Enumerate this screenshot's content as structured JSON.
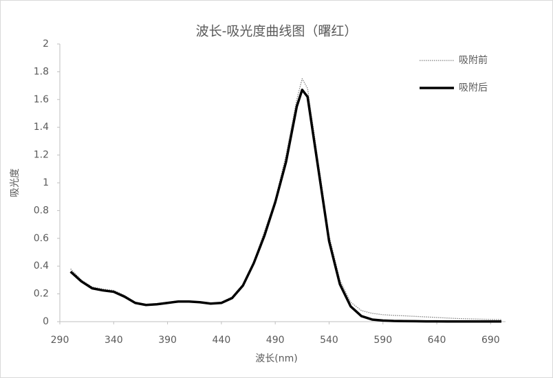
{
  "chart_data": {
    "type": "line",
    "title": "波长-吸光度曲线图（曙红）",
    "x_label": "波长(nm)",
    "y_label": "吸光度",
    "x": [
      300,
      310,
      320,
      330,
      340,
      350,
      360,
      370,
      380,
      390,
      400,
      410,
      420,
      430,
      440,
      450,
      460,
      470,
      480,
      490,
      500,
      510,
      515,
      520,
      530,
      540,
      550,
      560,
      570,
      580,
      590,
      600,
      610,
      620,
      630,
      640,
      650,
      660,
      670,
      680,
      690,
      700
    ],
    "series": [
      {
        "name": "吸附前",
        "color": "#7f7f7f",
        "line_style": "dotted",
        "line_width": 1.3,
        "values": [
          0.38,
          0.3,
          0.25,
          0.235,
          0.225,
          0.19,
          0.14,
          0.125,
          0.13,
          0.14,
          0.15,
          0.15,
          0.14,
          0.13,
          0.14,
          0.18,
          0.27,
          0.43,
          0.65,
          0.88,
          1.2,
          1.6,
          1.75,
          1.68,
          1.15,
          0.62,
          0.3,
          0.14,
          0.08,
          0.06,
          0.05,
          0.045,
          0.042,
          0.038,
          0.034,
          0.03,
          0.026,
          0.022,
          0.02,
          0.018,
          0.016,
          0.015
        ]
      },
      {
        "name": "吸附后",
        "color": "#000000",
        "line_style": "solid",
        "line_width": 3.5,
        "values": [
          0.36,
          0.29,
          0.24,
          0.225,
          0.215,
          0.18,
          0.135,
          0.12,
          0.125,
          0.135,
          0.145,
          0.145,
          0.14,
          0.13,
          0.135,
          0.17,
          0.26,
          0.42,
          0.62,
          0.86,
          1.15,
          1.55,
          1.67,
          1.62,
          1.1,
          0.58,
          0.27,
          0.11,
          0.04,
          0.015,
          0.008,
          0.005,
          0.004,
          0.003,
          0.002,
          0.002,
          0.001,
          0.001,
          0.001,
          0.001,
          0.001,
          0.001
        ]
      }
    ],
    "xlim": [
      290,
      700
    ],
    "xticks": [
      290,
      340,
      390,
      440,
      490,
      540,
      590,
      640,
      690
    ],
    "ylim": [
      0,
      2
    ],
    "yticks": [
      0,
      0.2,
      0.4,
      0.6,
      0.8,
      1,
      1.2,
      1.4,
      1.6,
      1.8,
      2
    ],
    "grid": false,
    "legend": "top-right"
  }
}
